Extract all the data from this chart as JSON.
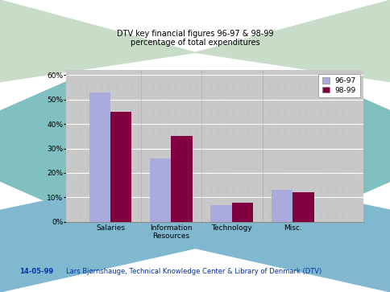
{
  "title_line1": "DTV key financial figures 96-97 & 98-99",
  "title_line2": "percentage of total expenditures",
  "categories": [
    "Salaries",
    "Information\nResources",
    "Technology",
    "Misc."
  ],
  "series_9697": [
    53,
    26,
    7,
    13
  ],
  "series_9899": [
    45,
    35,
    8,
    12
  ],
  "bar_color_9697": "#aaaadd",
  "bar_color_9899": "#800040",
  "legend_labels": [
    "96-97",
    "98-99"
  ],
  "yticks": [
    0,
    10,
    20,
    30,
    40,
    50,
    60
  ],
  "ylim": [
    0,
    62
  ],
  "plot_bg_color": "#c8c8c8",
  "outer_bg_color": "#ffffff",
  "footer_date": "14-05-99",
  "footer_text": "Lars Bjørnshauge, Technical Knowledge Center & Library of Denmark (DTV)",
  "footer_color": "#0033aa",
  "title_color": "#000000",
  "bar_width": 0.35,
  "green_color": "#c8ddc8",
  "teal_color": "#80c0c0",
  "blue_color": "#80b8d0",
  "figsize": [
    4.85,
    3.63
  ],
  "dpi": 100
}
